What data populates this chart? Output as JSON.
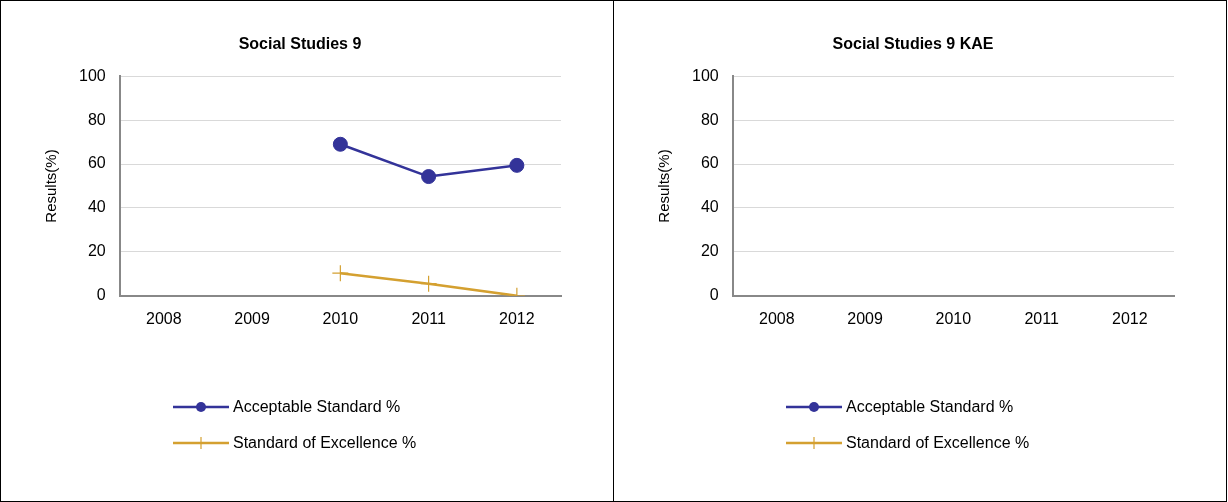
{
  "chart_data": [
    {
      "type": "line",
      "title": "Social Studies 9",
      "ylabel": "Results(%)",
      "categories": [
        "2008",
        "2009",
        "2010",
        "2011",
        "2012"
      ],
      "ylim": [
        0,
        100
      ],
      "yticks": [
        0,
        20,
        40,
        60,
        80,
        100
      ],
      "grid": "y",
      "legend": "bottom",
      "line_style": "solid",
      "series": [
        {
          "name": "Acceptable Standard %",
          "color": "#333399",
          "marker": "circle",
          "values": [
            null,
            null,
            69,
            54.3,
            59.4
          ]
        },
        {
          "name": "Standard of Excellence %",
          "color": "#d4a030",
          "marker": "cross",
          "values": [
            null,
            null,
            10.3,
            5.5,
            0
          ]
        }
      ]
    },
    {
      "type": "line",
      "title": "Social Studies 9 KAE",
      "ylabel": "Results(%)",
      "categories": [
        "2008",
        "2009",
        "2010",
        "2011",
        "2012"
      ],
      "ylim": [
        0,
        100
      ],
      "yticks": [
        0,
        20,
        40,
        60,
        80,
        100
      ],
      "grid": "y",
      "legend": "bottom",
      "line_style": "solid",
      "series": [
        {
          "name": "Acceptable Standard %",
          "color": "#333399",
          "marker": "circle",
          "values": [
            null,
            null,
            null,
            null,
            null
          ]
        },
        {
          "name": "Standard of Excellence %",
          "color": "#d4a030",
          "marker": "cross",
          "values": [
            null,
            null,
            null,
            null,
            null
          ]
        }
      ]
    }
  ]
}
